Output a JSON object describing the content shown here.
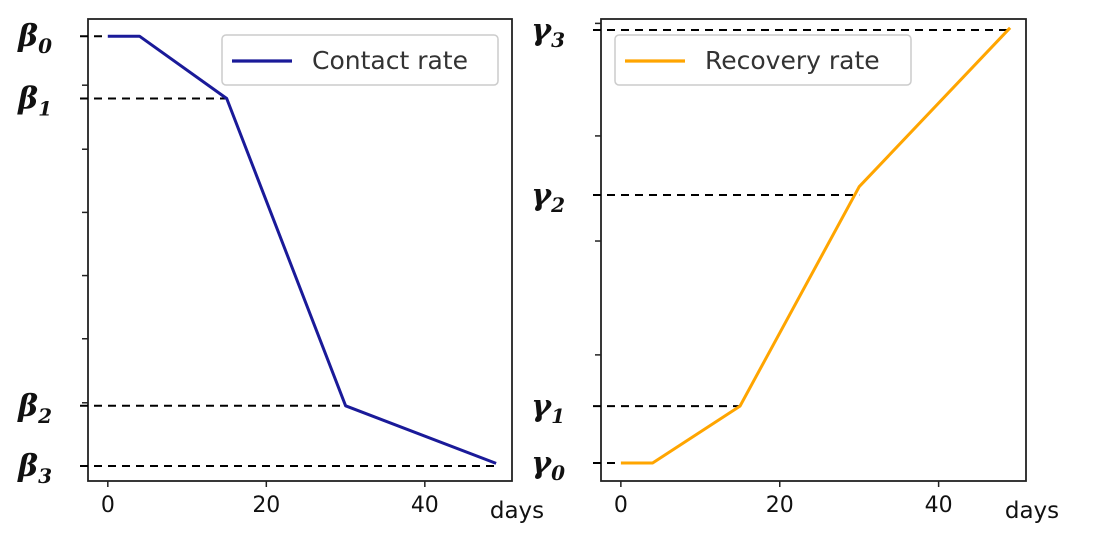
{
  "chart_data": [
    {
      "type": "line",
      "legend_location": "top-right",
      "grid": false,
      "xlabel": "days",
      "x_ticks": [
        0,
        20,
        40
      ],
      "xlim": [
        -2.5,
        51
      ],
      "ylim": [
        -0.035,
        1.04
      ],
      "y_minor_ticks": [
        0.147,
        0.296,
        0.443,
        0.59,
        0.737,
        0.886
      ],
      "series": [
        {
          "name": "Contact rate",
          "color": "#1a1a99",
          "x": [
            0,
            4,
            15,
            30,
            49
          ],
          "y": [
            1.0,
            1.0,
            0.855,
            0.14,
            0.006
          ]
        }
      ],
      "reference_levels": [
        {
          "label": "β",
          "sub": "0",
          "x_end": 0,
          "y": 1.0
        },
        {
          "label": "β",
          "sub": "1",
          "x_end": 15,
          "y": 0.855
        },
        {
          "label": "β",
          "sub": "2",
          "x_end": 30,
          "y": 0.14
        },
        {
          "label": "β",
          "sub": "3",
          "x_end": 49,
          "y": 0.0
        }
      ]
    },
    {
      "type": "line",
      "legend_location": "top-left",
      "grid": false,
      "xlabel": "days",
      "x_ticks": [
        0,
        20,
        40
      ],
      "xlim": [
        -2.5,
        51
      ],
      "ylim": [
        -0.035,
        1.02
      ],
      "y_minor_ticks": [
        0.253,
        0.513,
        0.753,
        1.01
      ],
      "series": [
        {
          "name": "Recovery rate",
          "color": "#ffa500",
          "x": [
            0,
            4,
            15,
            30,
            49
          ],
          "y": [
            0.006,
            0.006,
            0.136,
            0.637,
            1.0
          ]
        }
      ],
      "reference_levels": [
        {
          "label": "γ",
          "sub": "0",
          "x_end": 0,
          "y": 0.006
        },
        {
          "label": "γ",
          "sub": "1",
          "x_end": 15,
          "y": 0.136
        },
        {
          "label": "γ",
          "sub": "2",
          "x_end": 30,
          "y": 0.618
        },
        {
          "label": "γ",
          "sub": "3",
          "x_end": 49,
          "y": 0.995
        }
      ]
    }
  ]
}
